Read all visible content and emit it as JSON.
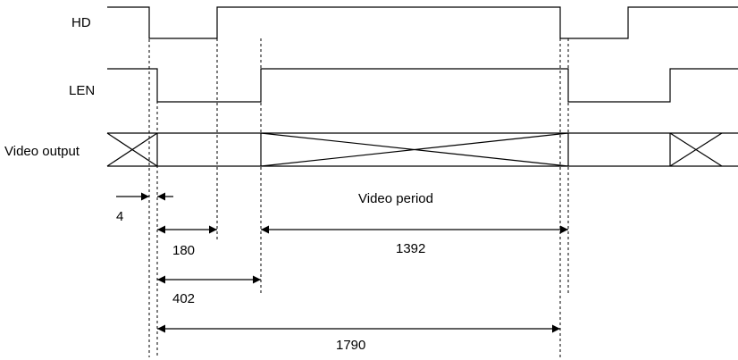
{
  "signals": {
    "hd": "HD",
    "len": "LEN",
    "video_output": "Video output"
  },
  "annotations": {
    "video_period": "Video period"
  },
  "dimensions": {
    "d4": "4",
    "d180": "180",
    "d402": "402",
    "d1392": "1392",
    "d1790": "1790"
  }
}
